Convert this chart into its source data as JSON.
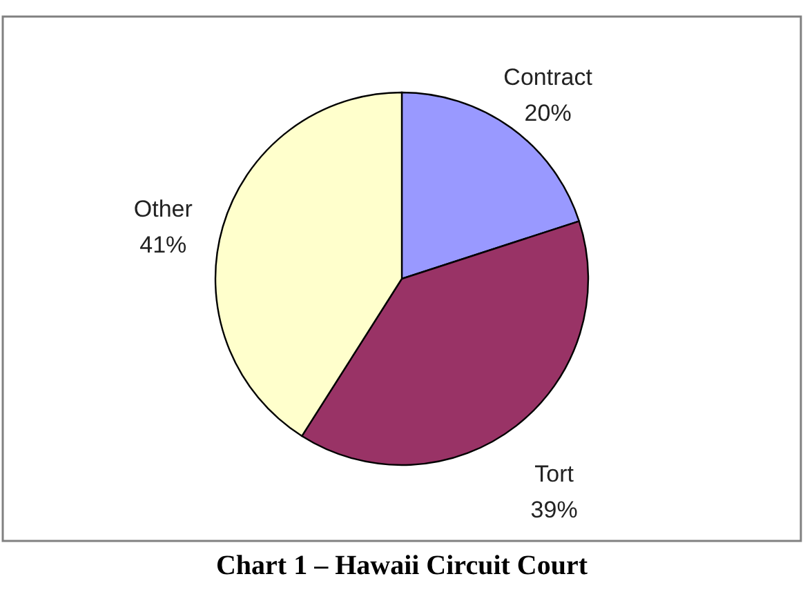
{
  "chart_data": {
    "type": "pie",
    "title": "Chart 1 – Hawaii Circuit Court",
    "categories": [
      "Contract",
      "Tort",
      "Other"
    ],
    "values": [
      20,
      39,
      41
    ],
    "value_labels": [
      "20%",
      "39%",
      "41%"
    ],
    "colors": [
      "#9999ff",
      "#993366",
      "#ffffcc"
    ]
  }
}
